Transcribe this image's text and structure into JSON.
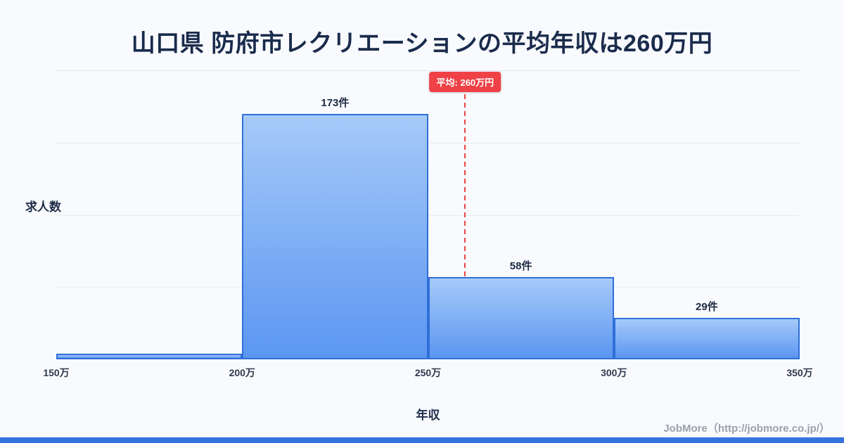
{
  "title": "山口県 防府市レクリエーションの平均年収は260万円",
  "footer": "JobMore（http://jobmore.co.jp/）",
  "colors": {
    "accent_red": "#e8453f",
    "badge_red": "#ef4146",
    "bar_fill_top": "#a6caf9",
    "bar_fill_bottom": "#5b96f1",
    "bar_border": "#2f6fd8",
    "title_navy": "#1a2b4c",
    "bottom_strip_blue": "#3574dd",
    "background": "#f8fafd"
  },
  "chart_data": {
    "type": "bar",
    "subtype": "histogram",
    "title": "山口県 防府市レクリエーションの平均年収は260万円",
    "xlabel": "年収",
    "ylabel": "求人数",
    "bin_edges": [
      150,
      200,
      250,
      300,
      350
    ],
    "bin_edge_labels": [
      "150万",
      "200万",
      "250万",
      "300万",
      "350万"
    ],
    "values": [
      4,
      173,
      58,
      29
    ],
    "bar_labels": [
      "",
      "173件",
      "58件",
      "29件"
    ],
    "average": 260,
    "average_label": "平均: 260万円",
    "unit_x": "万円",
    "unit_y": "件",
    "xlim": [
      150,
      350
    ],
    "legend": "none",
    "grid": "horizontal-faint"
  }
}
